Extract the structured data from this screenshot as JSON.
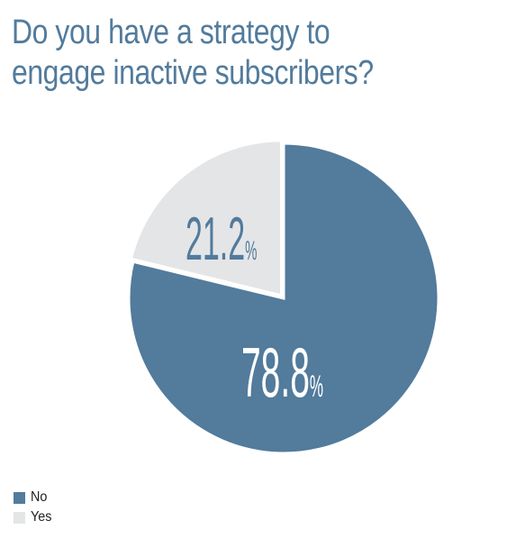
{
  "chart_data": {
    "type": "pie",
    "title": "Do you have a strategy to engage inactive subscribers?",
    "categories": [
      "No",
      "Yes"
    ],
    "values": [
      78.8,
      21.2
    ],
    "data_labels": [
      "78.8",
      "21.2"
    ],
    "unit": "%",
    "colors": [
      "#527b9c",
      "#e4e5e7"
    ],
    "label_colors": [
      "#ffffff",
      "#527b9c"
    ],
    "legend_position": "bottom-left"
  }
}
